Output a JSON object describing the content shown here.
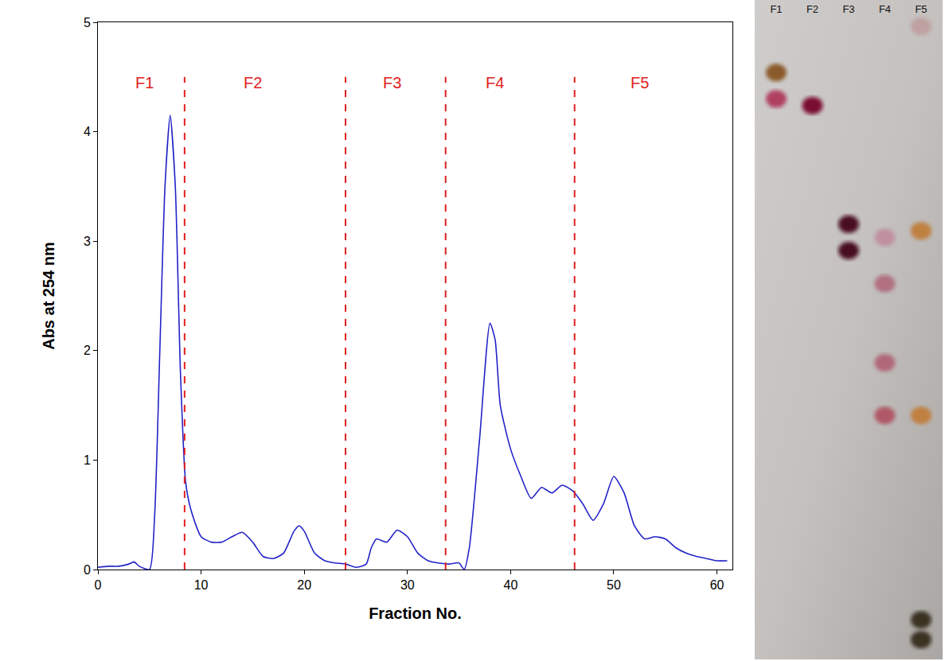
{
  "chart_data": {
    "type": "line",
    "xlabel": "Fraction No.",
    "ylabel": "Abs at 254 nm",
    "x": [
      0,
      1,
      2,
      3,
      3.5,
      4,
      5,
      5.5,
      6,
      6.5,
      7,
      7.5,
      8,
      8.5,
      9,
      10,
      11,
      12,
      13,
      14,
      15,
      16,
      17,
      18,
      19,
      19.5,
      20,
      21,
      22,
      23,
      24,
      25,
      26,
      26.5,
      27,
      28,
      29,
      30,
      31,
      32,
      33,
      34,
      35,
      35.5,
      36,
      37,
      38,
      38.5,
      39,
      40,
      41,
      42,
      43,
      44,
      45,
      46,
      47,
      48,
      49,
      50,
      51,
      52,
      53,
      54,
      55,
      56,
      57,
      58,
      59,
      60,
      61
    ],
    "series": [
      {
        "name": "Abs at 254 nm",
        "color": "#2323c8",
        "line_style": "solid",
        "values": [
          0.02,
          0.03,
          0.03,
          0.05,
          0.07,
          0.03,
          0.0,
          0.5,
          2.0,
          3.5,
          4.15,
          3.5,
          1.8,
          0.8,
          0.55,
          0.3,
          0.25,
          0.25,
          0.3,
          0.34,
          0.25,
          0.12,
          0.1,
          0.15,
          0.35,
          0.4,
          0.35,
          0.15,
          0.08,
          0.06,
          0.05,
          0.02,
          0.05,
          0.2,
          0.28,
          0.25,
          0.36,
          0.3,
          0.15,
          0.08,
          0.06,
          0.05,
          0.06,
          0.0,
          0.2,
          1.2,
          2.25,
          2.1,
          1.5,
          1.1,
          0.85,
          0.65,
          0.75,
          0.7,
          0.77,
          0.72,
          0.6,
          0.45,
          0.6,
          0.85,
          0.7,
          0.4,
          0.28,
          0.3,
          0.28,
          0.2,
          0.15,
          0.12,
          0.1,
          0.08,
          0.08
        ]
      }
    ],
    "xlim": [
      0,
      61.5
    ],
    "xticks": [
      0,
      10,
      20,
      30,
      40,
      50,
      60
    ],
    "ylim": [
      0,
      5
    ],
    "yticks": [
      0,
      1,
      2,
      3,
      4,
      5
    ],
    "grid": false,
    "dividers": {
      "x": [
        8.4,
        24,
        33.7,
        46.2
      ],
      "color": "#e02020",
      "line_style": "dash"
    },
    "annotations": [
      {
        "text": "F1",
        "x": 4.5,
        "y": 4.45,
        "color": "#e02020"
      },
      {
        "text": "F2",
        "x": 15,
        "y": 4.45,
        "color": "#e02020"
      },
      {
        "text": "F3",
        "x": 28.5,
        "y": 4.45,
        "color": "#e02020"
      },
      {
        "text": "F4",
        "x": 38.5,
        "y": 4.45,
        "color": "#e02020"
      },
      {
        "text": "F5",
        "x": 52.5,
        "y": 4.45,
        "color": "#e02020"
      }
    ]
  },
  "tlc_plate": {
    "lanes": [
      "F1",
      "F2",
      "F3",
      "F4",
      "F5"
    ],
    "spots": [
      {
        "lane": 0,
        "rf": 0.89,
        "color": "#8a5a2a"
      },
      {
        "lane": 0,
        "rf": 0.85,
        "color": "#b04060"
      },
      {
        "lane": 1,
        "rf": 0.84,
        "color": "#7a1030"
      },
      {
        "lane": 2,
        "rf": 0.66,
        "color": "#4a1020"
      },
      {
        "lane": 2,
        "rf": 0.62,
        "color": "#4a1020"
      },
      {
        "lane": 3,
        "rf": 0.64,
        "color": "#c090a0"
      },
      {
        "lane": 3,
        "rf": 0.57,
        "color": "#b07080"
      },
      {
        "lane": 3,
        "rf": 0.45,
        "color": "#b06878"
      },
      {
        "lane": 3,
        "rf": 0.37,
        "color": "#b05868"
      },
      {
        "lane": 4,
        "rf": 0.96,
        "color": "#c0a0a0"
      },
      {
        "lane": 4,
        "rf": 0.65,
        "color": "#c08040"
      },
      {
        "lane": 4,
        "rf": 0.37,
        "color": "#c08040"
      },
      {
        "lane": 4,
        "rf": 0.06,
        "color": "#3a3020"
      },
      {
        "lane": 4,
        "rf": 0.03,
        "color": "#3a3020"
      }
    ]
  }
}
